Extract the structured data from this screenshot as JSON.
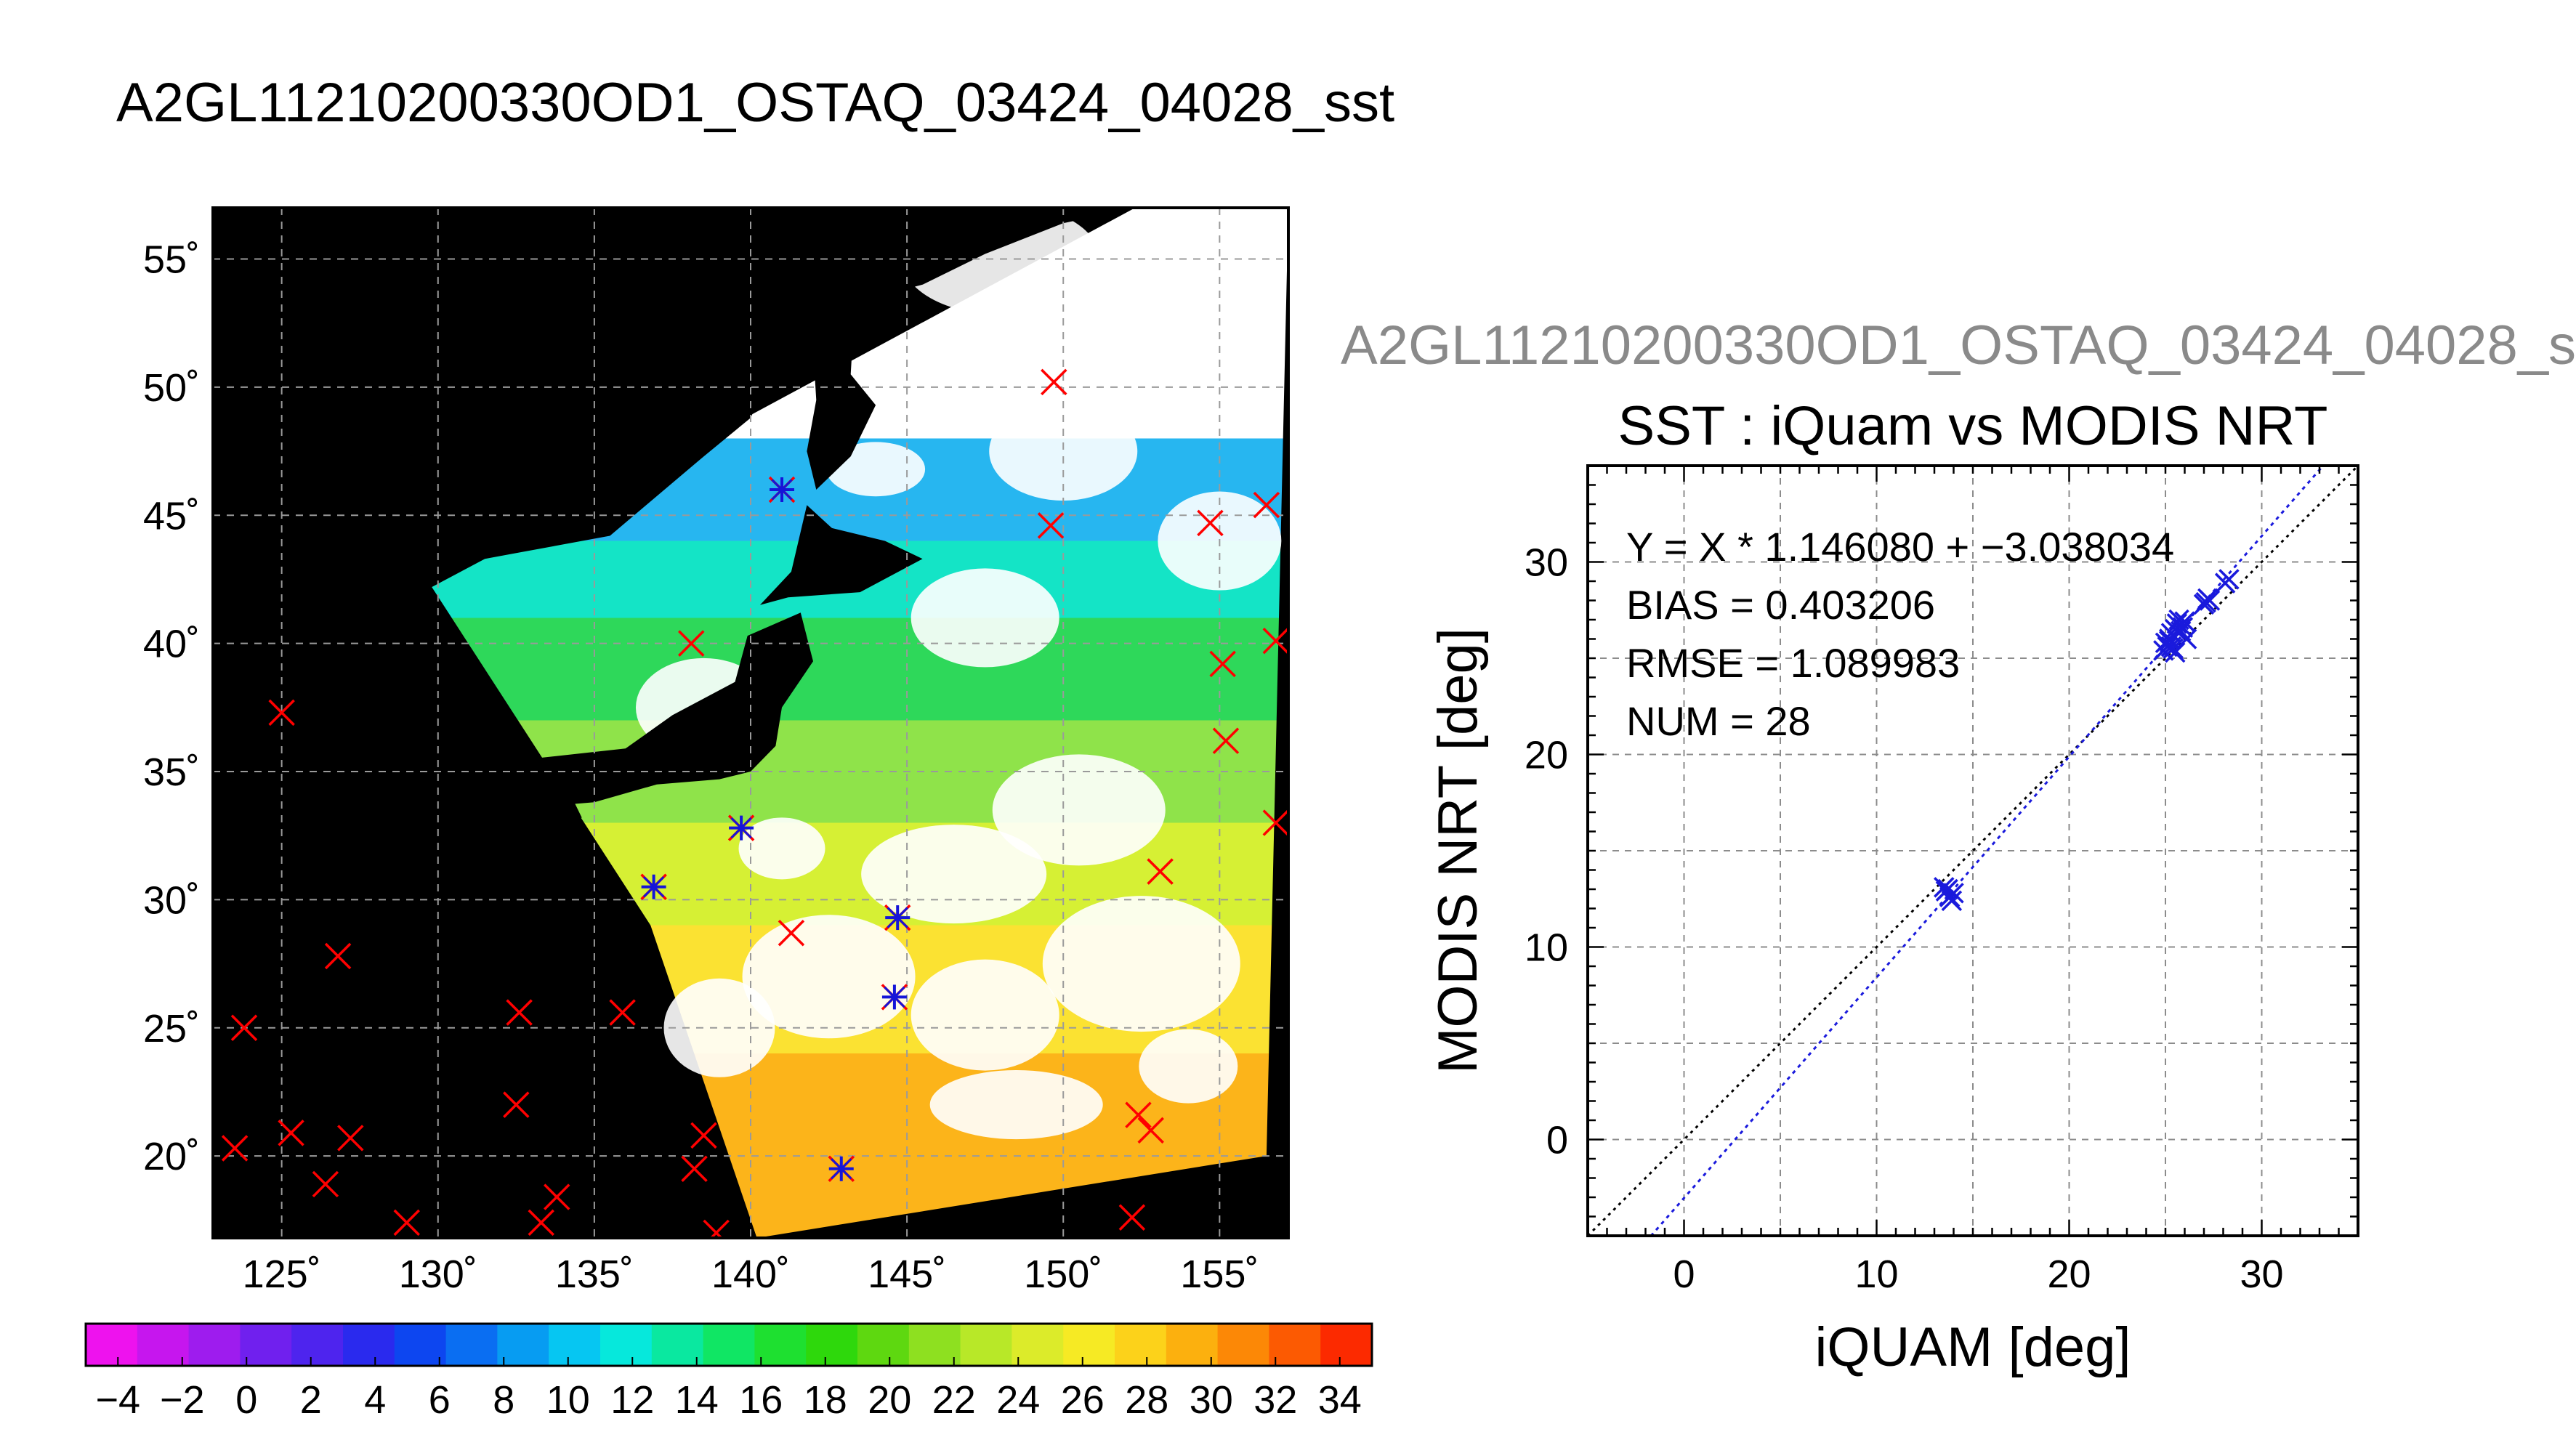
{
  "figure": {
    "title": "A2GL11210200330OD1_OSTAQ_03424_04028_sst",
    "scatter_header": "A2GL11210200330OD1_OSTAQ_03424_04028_s"
  },
  "map": {
    "lon_range": [
      122.8,
      157.2
    ],
    "lat_range": [
      16.8,
      57.0
    ],
    "lon_ticks": [
      125,
      130,
      135,
      140,
      145,
      150,
      155
    ],
    "lat_ticks": [
      20,
      25,
      30,
      35,
      40,
      45,
      50,
      55
    ],
    "lon_tick_labels": [
      "125˚",
      "130˚",
      "135˚",
      "140˚",
      "145˚",
      "150˚",
      "155˚"
    ],
    "lat_tick_labels": [
      "20˚",
      "25˚",
      "30˚",
      "35˚",
      "40˚",
      "45˚",
      "50˚",
      "55˚"
    ],
    "grid": true,
    "background_color": "#000000",
    "swath": {
      "corners": [
        [
          129.8,
          42.2
        ],
        [
          152.3,
          57.0
        ],
        [
          157.2,
          57.0
        ],
        [
          156.5,
          20.0
        ],
        [
          140.2,
          16.8
        ],
        [
          136.8,
          29.0
        ]
      ],
      "sst_bands": [
        {
          "lat_from": 57.0,
          "lat_to": 48.0,
          "color": "#ffffff"
        },
        {
          "lat_from": 48.0,
          "lat_to": 44.0,
          "color": "#27b6f0"
        },
        {
          "lat_from": 44.0,
          "lat_to": 41.0,
          "color": "#14e4c6"
        },
        {
          "lat_from": 41.0,
          "lat_to": 37.0,
          "color": "#2ed85a"
        },
        {
          "lat_from": 37.0,
          "lat_to": 33.0,
          "color": "#8fe34a"
        },
        {
          "lat_from": 33.0,
          "lat_to": 29.0,
          "color": "#d6f034"
        },
        {
          "lat_from": 29.0,
          "lat_to": 24.0,
          "color": "#fbe232"
        },
        {
          "lat_from": 24.0,
          "lat_to": 16.8,
          "color": "#fcb41a"
        }
      ]
    },
    "land_color": "#000000",
    "cloud_color": "#ffffff",
    "match_markers": [
      {
        "lon": 125.0,
        "lat": 37.3,
        "matched": false
      },
      {
        "lon": 126.8,
        "lat": 27.8,
        "matched": false
      },
      {
        "lon": 123.8,
        "lat": 25.0,
        "matched": false
      },
      {
        "lon": 123.5,
        "lat": 20.3,
        "matched": false
      },
      {
        "lon": 125.3,
        "lat": 20.9,
        "matched": false
      },
      {
        "lon": 126.4,
        "lat": 18.9,
        "matched": false
      },
      {
        "lon": 127.2,
        "lat": 20.7,
        "matched": false
      },
      {
        "lon": 129.0,
        "lat": 17.4,
        "matched": false
      },
      {
        "lon": 132.5,
        "lat": 22.0,
        "matched": false
      },
      {
        "lon": 132.6,
        "lat": 25.6,
        "matched": false
      },
      {
        "lon": 133.3,
        "lat": 17.4,
        "matched": false
      },
      {
        "lon": 133.8,
        "lat": 18.4,
        "matched": false
      },
      {
        "lon": 135.9,
        "lat": 25.6,
        "matched": false
      },
      {
        "lon": 138.2,
        "lat": 19.5,
        "matched": false
      },
      {
        "lon": 138.5,
        "lat": 20.8,
        "matched": false
      },
      {
        "lon": 138.9,
        "lat": 17.0,
        "matched": false
      },
      {
        "lon": 138.1,
        "lat": 40.0,
        "matched": false
      },
      {
        "lon": 141.3,
        "lat": 28.7,
        "matched": false
      },
      {
        "lon": 149.7,
        "lat": 50.2,
        "matched": false
      },
      {
        "lon": 149.6,
        "lat": 44.6,
        "matched": false
      },
      {
        "lon": 152.2,
        "lat": 17.6,
        "matched": false
      },
      {
        "lon": 152.4,
        "lat": 21.6,
        "matched": false
      },
      {
        "lon": 152.8,
        "lat": 21.0,
        "matched": false
      },
      {
        "lon": 153.1,
        "lat": 31.1,
        "matched": false
      },
      {
        "lon": 154.7,
        "lat": 44.7,
        "matched": false
      },
      {
        "lon": 155.1,
        "lat": 39.2,
        "matched": false
      },
      {
        "lon": 155.2,
        "lat": 36.2,
        "matched": false
      },
      {
        "lon": 156.5,
        "lat": 45.4,
        "matched": false
      },
      {
        "lon": 156.8,
        "lat": 40.1,
        "matched": false
      },
      {
        "lon": 156.8,
        "lat": 33.0,
        "matched": false
      },
      {
        "lon": 141.0,
        "lat": 46.0,
        "matched": true
      },
      {
        "lon": 136.9,
        "lat": 30.5,
        "matched": true
      },
      {
        "lon": 139.7,
        "lat": 32.8,
        "matched": true
      },
      {
        "lon": 144.7,
        "lat": 29.3,
        "matched": true
      },
      {
        "lon": 144.6,
        "lat": 26.2,
        "matched": true
      },
      {
        "lon": 142.9,
        "lat": 19.5,
        "matched": true
      }
    ],
    "unmatched_color": "#ff0000",
    "matched_color": "#1515d8"
  },
  "colorbar": {
    "range": [
      -5,
      35
    ],
    "ticks": [
      -4,
      -2,
      0,
      2,
      4,
      6,
      8,
      10,
      12,
      14,
      16,
      18,
      20,
      22,
      24,
      26,
      28,
      30,
      32,
      34
    ],
    "tick_labels": [
      "−4",
      "−2",
      "0",
      "2",
      "4",
      "6",
      "8",
      "10",
      "12",
      "14",
      "16",
      "18",
      "20",
      "22",
      "24",
      "26",
      "28",
      "30",
      "32",
      "34"
    ],
    "colors": [
      "#ee12ee",
      "#c616ee",
      "#9e1cee",
      "#7020ee",
      "#4e24ee",
      "#2a2aee",
      "#0d46f0",
      "#0a6ef2",
      "#079cf2",
      "#06c6f2",
      "#06e8dc",
      "#0ae8a0",
      "#10e664",
      "#1ee030",
      "#2ed80c",
      "#5ed810",
      "#8ee020",
      "#b8e828",
      "#dceb2a",
      "#f6ea24",
      "#fcd21a",
      "#fcb00e",
      "#fc8806",
      "#fc5a02",
      "#fc2a00"
    ]
  },
  "chart_data": {
    "type": "scatter",
    "title": "SST : iQuam vs MODIS NRT",
    "xlabel": "iQUAM [deg]",
    "ylabel": "MODIS NRT [deg]",
    "xlim": [
      -5,
      35
    ],
    "ylim": [
      -5,
      35
    ],
    "xticks": [
      0,
      10,
      20,
      30
    ],
    "yticks": [
      0,
      10,
      20,
      30
    ],
    "grid": true,
    "series": [
      {
        "values": [
          [
            13.6,
            12.9
          ],
          [
            13.8,
            12.6
          ],
          [
            14.0,
            12.8
          ],
          [
            13.5,
            13.1
          ],
          [
            13.9,
            12.4
          ],
          [
            13.7,
            13.0
          ],
          [
            24.9,
            25.4
          ],
          [
            25.1,
            25.6
          ],
          [
            25.2,
            25.9
          ],
          [
            25.3,
            26.3
          ],
          [
            25.5,
            26.5
          ],
          [
            25.6,
            26.8
          ],
          [
            25.4,
            25.5
          ],
          [
            25.7,
            27.0
          ],
          [
            25.0,
            25.8
          ],
          [
            25.8,
            26.4
          ],
          [
            26.0,
            26.9
          ],
          [
            25.2,
            26.0
          ],
          [
            27.0,
            27.8
          ],
          [
            27.2,
            28.1
          ],
          [
            27.1,
            27.9
          ],
          [
            28.1,
            28.9
          ],
          [
            28.3,
            29.1
          ],
          [
            27.3,
            28.0
          ],
          [
            25.5,
            25.3
          ],
          [
            25.9,
            26.6
          ],
          [
            26.1,
            26.0
          ],
          [
            25.3,
            25.6
          ]
        ],
        "color": "#1a1adc"
      }
    ],
    "reference_line": {
      "slope": 1,
      "intercept": 0,
      "color": "#000000",
      "style": "dotted"
    },
    "fit_line": {
      "slope": 1.14608,
      "intercept": -3.038034,
      "color": "#1a1adc",
      "style": "dotted"
    },
    "annotations": [
      "Y = X * 1.146080 + −3.038034",
      "BIAS = 0.403206",
      "RMSE = 1.089983",
      "NUM = 28"
    ]
  }
}
